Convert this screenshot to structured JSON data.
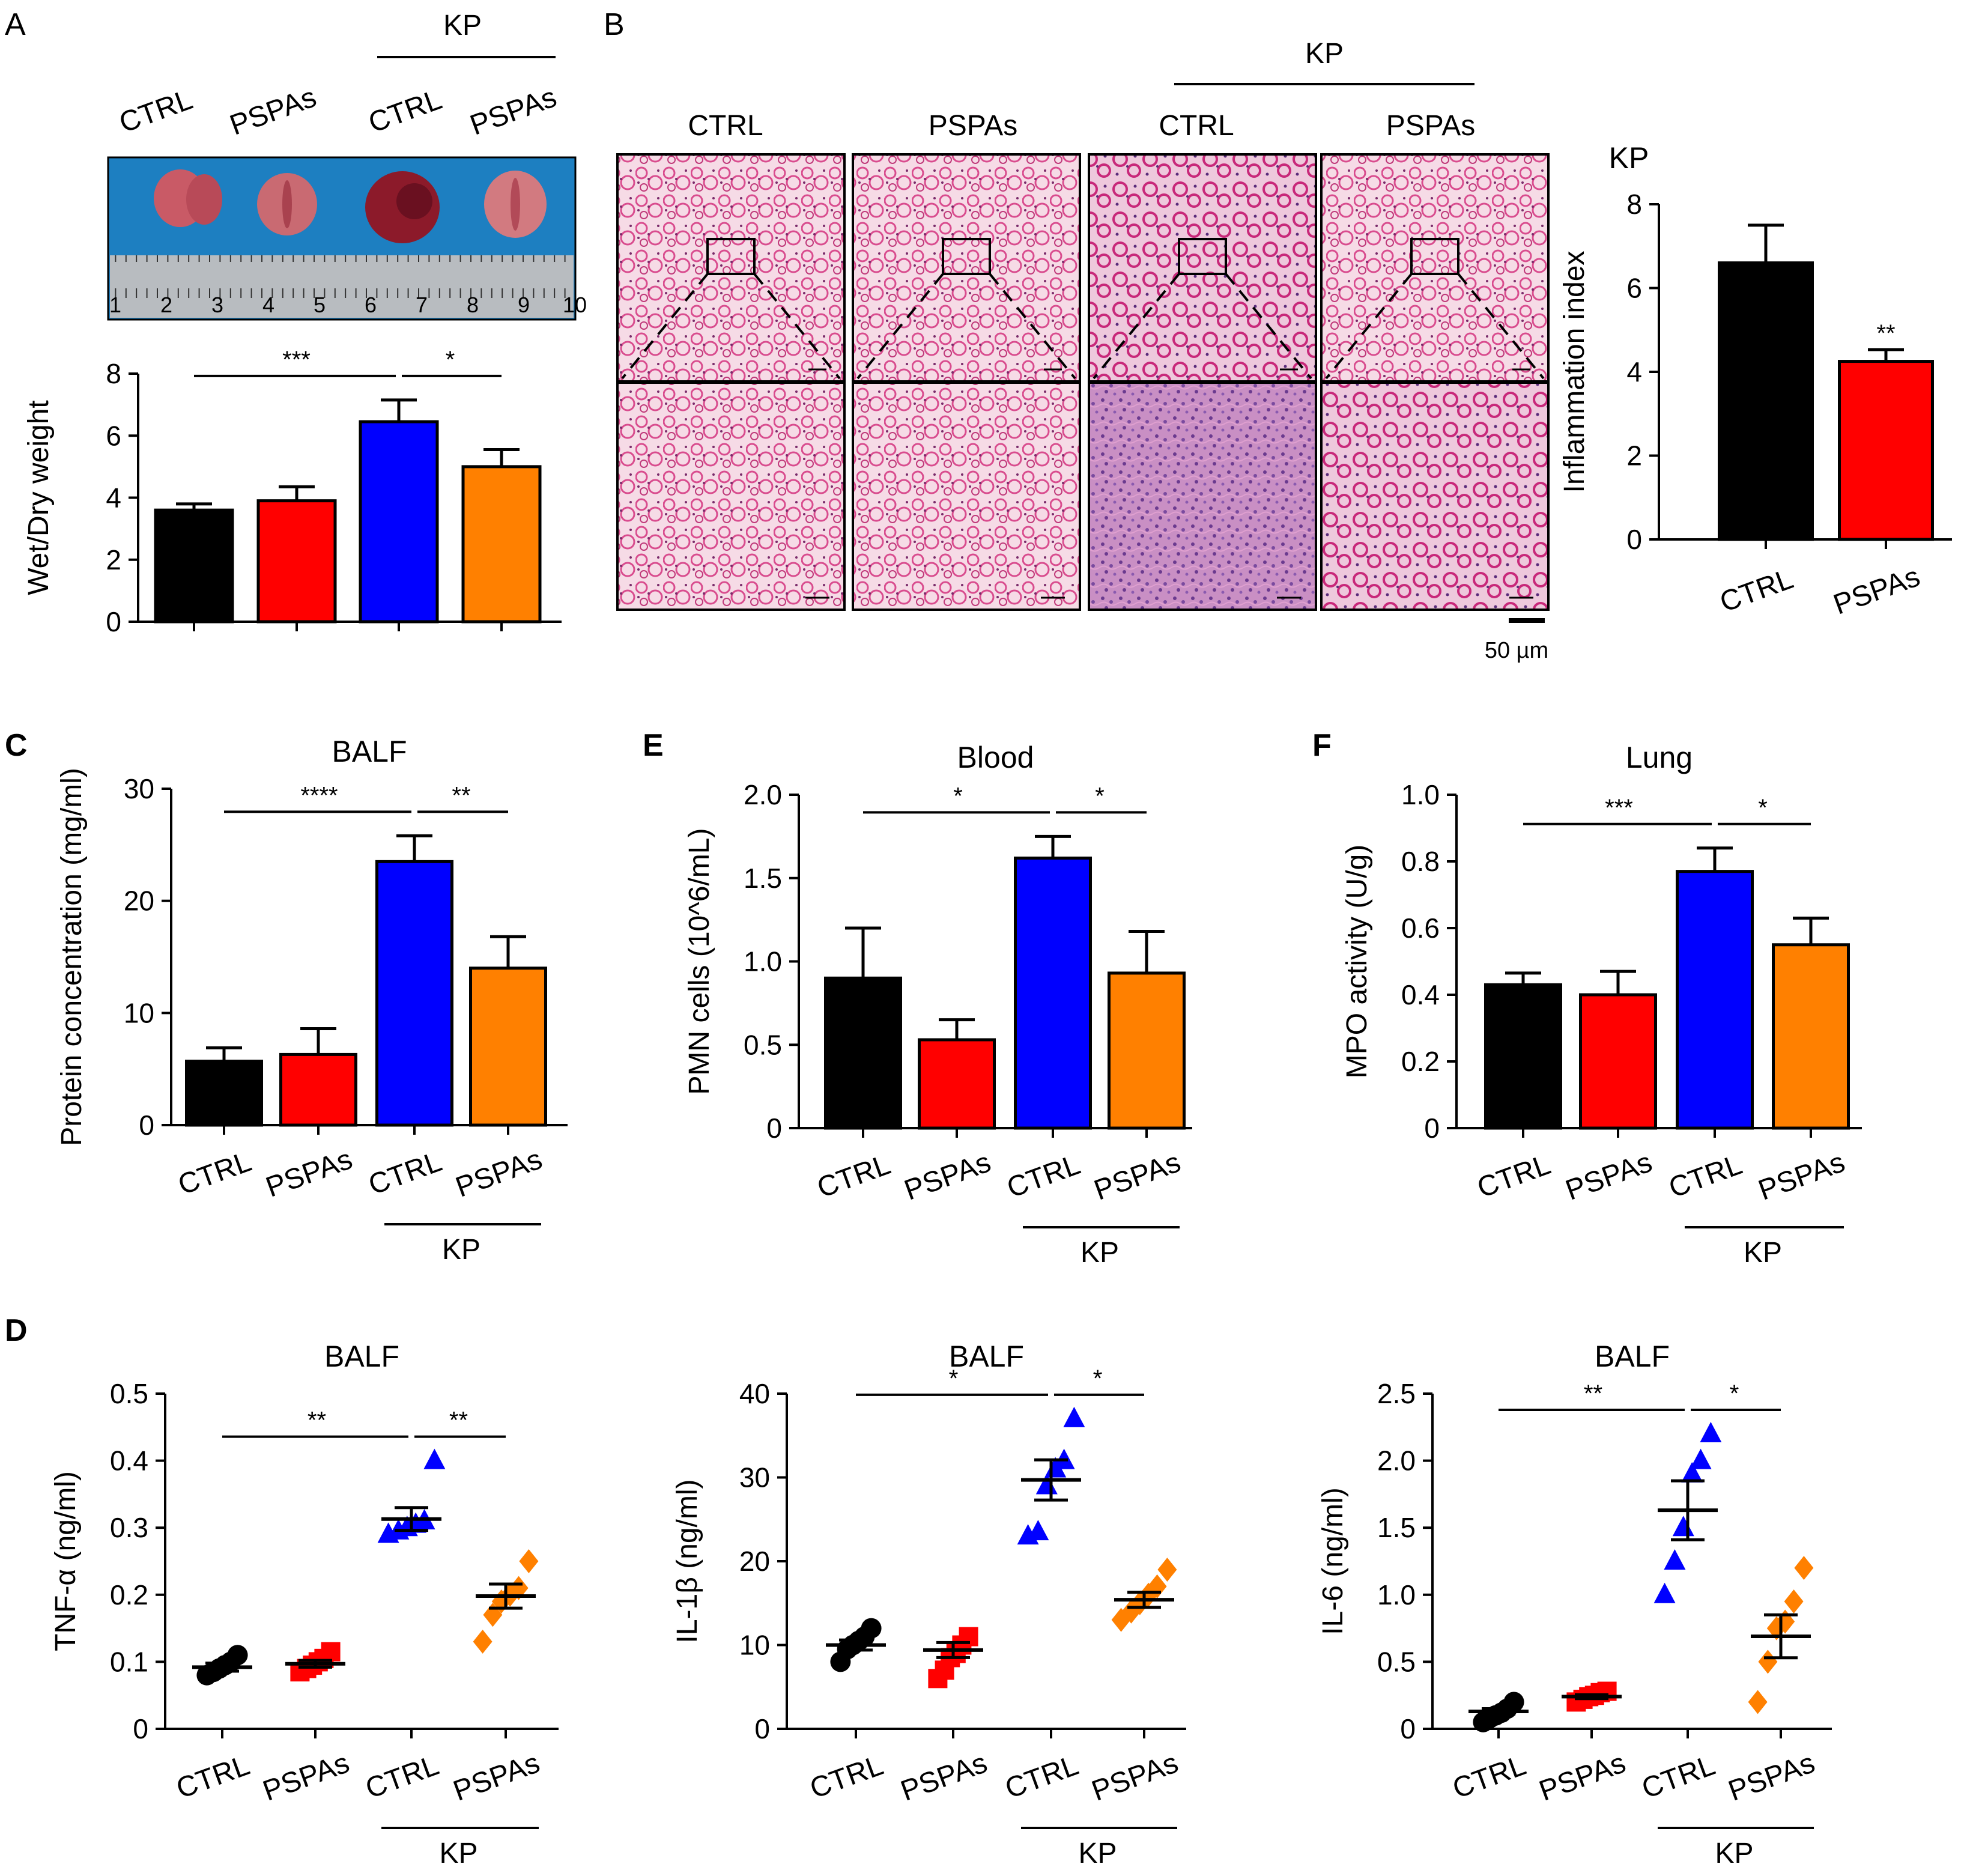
{
  "figure": {
    "panel_labels": {
      "A": "A",
      "B": "B",
      "C": "C",
      "D": "D",
      "E": "E",
      "F": "F"
    },
    "group_label": "KP",
    "scale_bar_label": "50 µm"
  },
  "panel_a": {
    "photo_labels": [
      "CTRL",
      "PSPAs",
      "CTRL",
      "PSPAs"
    ],
    "ruler_numbers": [
      "1",
      "2",
      "3",
      "4",
      "5",
      "6",
      "7",
      "8",
      "9",
      "10"
    ]
  },
  "panel_b": {
    "column_labels": [
      "CTRL",
      "PSPAs",
      "CTRL",
      "PSPAs"
    ],
    "kp_label": "KP"
  },
  "colors": {
    "ctrl": "#000000",
    "pspas": "#ff0000",
    "kp_ctrl": "#0000ff",
    "kp_pspas": "#ff8000"
  },
  "chart_data": [
    {
      "id": "A",
      "type": "bar",
      "title": "",
      "ylabel": "Wet/Dry weight",
      "xlabel": "",
      "ylim": [
        0,
        8
      ],
      "yticks": [
        "0",
        "2",
        "4",
        "6",
        "8"
      ],
      "categories": [
        "",
        "",
        "",
        ""
      ],
      "values": [
        3.6,
        3.9,
        6.45,
        5.0
      ],
      "errors": [
        0.2,
        0.45,
        0.7,
        0.55
      ],
      "colors": [
        "#000000",
        "#ff0000",
        "#0000ff",
        "#ff8000"
      ],
      "sig": [
        {
          "from": 0,
          "to": 2,
          "label": "***"
        },
        {
          "from": 2,
          "to": 3,
          "label": "*"
        }
      ],
      "group_label": ""
    },
    {
      "id": "B",
      "type": "bar",
      "title": "KP",
      "ylabel": "Inflammation index",
      "xlabel": "",
      "ylim": [
        0,
        8
      ],
      "yticks": [
        "0",
        "2",
        "4",
        "6",
        "8"
      ],
      "categories": [
        "CTRL",
        "PSPAs"
      ],
      "values": [
        6.6,
        4.25
      ],
      "errors": [
        0.9,
        0.28
      ],
      "colors": [
        "#000000",
        "#ff0000"
      ],
      "star_labels": [
        "",
        "**"
      ],
      "group_label": ""
    },
    {
      "id": "C",
      "type": "bar",
      "title": "BALF",
      "ylabel": "Protein concentration (mg/ml)",
      "xlabel": "",
      "ylim": [
        0,
        30
      ],
      "yticks": [
        "0",
        "10",
        "20",
        "30"
      ],
      "categories": [
        "CTRL",
        "PSPAs",
        "CTRL",
        "PSPAs"
      ],
      "values": [
        5.7,
        6.3,
        23.5,
        14.0
      ],
      "errors": [
        1.2,
        2.3,
        2.3,
        2.8
      ],
      "colors": [
        "#000000",
        "#ff0000",
        "#0000ff",
        "#ff8000"
      ],
      "sig": [
        {
          "from": 0,
          "to": 2,
          "label": "****"
        },
        {
          "from": 2,
          "to": 3,
          "label": "**"
        }
      ],
      "group_label": "KP"
    },
    {
      "id": "E",
      "type": "bar",
      "title": "Blood",
      "ylabel": "PMN cells (10^6/mL)",
      "xlabel": "",
      "ylim": [
        0,
        2.0
      ],
      "yticks": [
        "0",
        "0.5",
        "1.0",
        "1.5",
        "2.0"
      ],
      "categories": [
        "CTRL",
        "PSPAs",
        "CTRL",
        "PSPAs"
      ],
      "values": [
        0.9,
        0.53,
        1.62,
        0.93
      ],
      "errors": [
        0.3,
        0.12,
        0.13,
        0.25
      ],
      "colors": [
        "#000000",
        "#ff0000",
        "#0000ff",
        "#ff8000"
      ],
      "sig": [
        {
          "from": 0,
          "to": 2,
          "label": "*"
        },
        {
          "from": 2,
          "to": 3,
          "label": "*"
        }
      ],
      "group_label": "KP"
    },
    {
      "id": "F",
      "type": "bar",
      "title": "Lung",
      "ylabel": "MPO activity (U/g)",
      "xlabel": "",
      "ylim": [
        0,
        1.0
      ],
      "yticks": [
        "0",
        "0.2",
        "0.4",
        "0.6",
        "0.8",
        "1.0"
      ],
      "categories": [
        "CTRL",
        "PSPAs",
        "CTRL",
        "PSPAs"
      ],
      "values": [
        0.43,
        0.4,
        0.77,
        0.55
      ],
      "errors": [
        0.035,
        0.07,
        0.07,
        0.08
      ],
      "colors": [
        "#000000",
        "#ff0000",
        "#0000ff",
        "#ff8000"
      ],
      "sig": [
        {
          "from": 0,
          "to": 2,
          "label": "***"
        },
        {
          "from": 2,
          "to": 3,
          "label": "*"
        }
      ],
      "group_label": "KP"
    },
    {
      "id": "D1",
      "type": "scatter",
      "title": "BALF",
      "ylabel": "TNF-α (ng/ml)",
      "xlabel": "",
      "ylim": [
        0,
        0.5
      ],
      "yticks": [
        "0",
        "0.1",
        "0.2",
        "0.3",
        "0.4",
        "0.5"
      ],
      "categories": [
        "CTRL",
        "PSPAs",
        "CTRL",
        "PSPAs"
      ],
      "markers": [
        "circle",
        "square",
        "triangle",
        "diamond"
      ],
      "colors": [
        "#000000",
        "#ff0000",
        "#0000ff",
        "#ff8000"
      ],
      "points": [
        [
          0.08,
          0.085,
          0.09,
          0.095,
          0.1,
          0.11
        ],
        [
          0.085,
          0.09,
          0.095,
          0.1,
          0.105,
          0.115
        ],
        [
          0.29,
          0.295,
          0.3,
          0.305,
          0.31,
          0.4
        ],
        [
          0.13,
          0.17,
          0.19,
          0.2,
          0.21,
          0.25
        ]
      ],
      "means": [
        0.092,
        0.097,
        0.313,
        0.198
      ],
      "sems": [
        0.006,
        0.005,
        0.017,
        0.018
      ],
      "sig": [
        {
          "from": 0,
          "to": 2,
          "label": "**"
        },
        {
          "from": 2,
          "to": 3,
          "label": "**"
        }
      ],
      "group_label": "KP"
    },
    {
      "id": "D2",
      "type": "scatter",
      "title": "BALF",
      "ylabel": "IL-1β (ng/ml)",
      "xlabel": "",
      "ylim": [
        0,
        40
      ],
      "yticks": [
        "0",
        "10",
        "20",
        "30",
        "40"
      ],
      "categories": [
        "CTRL",
        "PSPAs",
        "CTRL",
        "PSPAs"
      ],
      "markers": [
        "circle",
        "square",
        "triangle",
        "diamond"
      ],
      "colors": [
        "#000000",
        "#ff0000",
        "#0000ff",
        "#ff8000"
      ],
      "points": [
        [
          8,
          9.5,
          10,
          10.5,
          11,
          12
        ],
        [
          6,
          7,
          8.5,
          9,
          10,
          11
        ],
        [
          23,
          23.5,
          29,
          31,
          32,
          37
        ],
        [
          13,
          14,
          15,
          16,
          17,
          19
        ]
      ],
      "means": [
        10,
        9.4,
        29.7,
        15.4
      ],
      "sems": [
        0.6,
        0.9,
        2.4,
        0.9
      ],
      "sig": [
        {
          "from": 0,
          "to": 2,
          "label": "*"
        },
        {
          "from": 2,
          "to": 3,
          "label": "*"
        }
      ],
      "group_label": "KP"
    },
    {
      "id": "D3",
      "type": "scatter",
      "title": "BALF",
      "ylabel": "IL-6 (ng/ml)",
      "xlabel": "",
      "ylim": [
        0,
        2.5
      ],
      "yticks": [
        "0",
        "0.5",
        "1.0",
        "1.5",
        "2.0",
        "2.5"
      ],
      "categories": [
        "CTRL",
        "PSPAs",
        "CTRL",
        "PSPAs"
      ],
      "markers": [
        "circle",
        "square",
        "triangle",
        "diamond"
      ],
      "colors": [
        "#000000",
        "#ff0000",
        "#0000ff",
        "#ff8000"
      ],
      "points": [
        [
          0.05,
          0.08,
          0.1,
          0.12,
          0.15,
          0.2
        ],
        [
          0.2,
          0.22,
          0.24,
          0.25,
          0.27,
          0.28
        ],
        [
          1.0,
          1.25,
          1.5,
          1.9,
          2.0,
          2.2
        ],
        [
          0.2,
          0.5,
          0.75,
          0.8,
          0.95,
          1.2
        ]
      ],
      "means": [
        0.13,
        0.24,
        1.63,
        0.69
      ],
      "sems": [
        0.02,
        0.015,
        0.22,
        0.16
      ],
      "sig": [
        {
          "from": 0,
          "to": 2,
          "label": "**"
        },
        {
          "from": 2,
          "to": 3,
          "label": "*"
        }
      ],
      "group_label": "KP"
    }
  ]
}
